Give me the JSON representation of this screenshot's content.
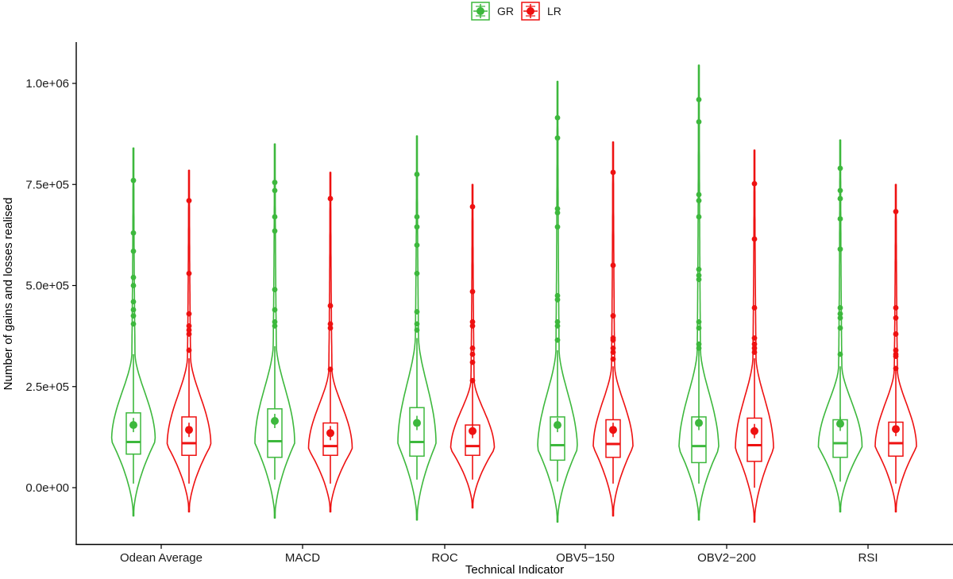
{
  "chart_data": {
    "type": "violin",
    "title": "",
    "xlabel": "Technical Indicator",
    "ylabel": "Number of gains and losses realised",
    "ylim": [
      -130000,
      1100000
    ],
    "yticks": [
      {
        "value": 0,
        "label": "0.0e+00"
      },
      {
        "value": 250000,
        "label": "2.5e+05"
      },
      {
        "value": 500000,
        "label": "5.0e+05"
      },
      {
        "value": 750000,
        "label": "7.5e+05"
      },
      {
        "value": 1000000,
        "label": "1.0e+06"
      }
    ],
    "grid": false,
    "legend": {
      "position": "top",
      "entries": [
        {
          "name": "GR",
          "color": "#3db83d"
        },
        {
          "name": "LR",
          "color": "#ee1111"
        }
      ]
    },
    "categories": [
      "Odean Average",
      "MACD",
      "ROC",
      "OBV5−150",
      "OBV2−200",
      "RSI"
    ],
    "series": [
      {
        "name": "GR",
        "color": "#3db83d",
        "groups": [
          {
            "min": -70000,
            "max": 840000,
            "q1": 83000,
            "median": 113000,
            "q3": 185000,
            "mean": 155000,
            "whisker_low": 10000,
            "whisker_high": 330000,
            "peak": 115000,
            "halfwidth": 55,
            "outliers": [
              760000,
              630000,
              585000,
              520000,
              500000,
              460000,
              440000,
              425000,
              405000
            ]
          },
          {
            "min": -75000,
            "max": 850000,
            "q1": 75000,
            "median": 115000,
            "q3": 195000,
            "mean": 165000,
            "whisker_low": 20000,
            "whisker_high": 350000,
            "peak": 110000,
            "halfwidth": 50,
            "outliers": [
              755000,
              735000,
              670000,
              635000,
              490000,
              440000,
              410000,
              400000
            ]
          },
          {
            "min": -80000,
            "max": 870000,
            "q1": 78000,
            "median": 113000,
            "q3": 198000,
            "mean": 160000,
            "whisker_low": 20000,
            "whisker_high": 370000,
            "peak": 108000,
            "halfwidth": 48,
            "outliers": [
              775000,
              670000,
              645000,
              600000,
              530000,
              435000,
              405000,
              390000
            ]
          },
          {
            "min": -85000,
            "max": 1005000,
            "q1": 68000,
            "median": 105000,
            "q3": 175000,
            "mean": 155000,
            "whisker_low": 15000,
            "whisker_high": 340000,
            "peak": 95000,
            "halfwidth": 50,
            "outliers": [
              915000,
              865000,
              690000,
              680000,
              645000,
              475000,
              465000,
              410000,
              400000,
              365000
            ]
          },
          {
            "min": -80000,
            "max": 1045000,
            "q1": 62000,
            "median": 103000,
            "q3": 175000,
            "mean": 160000,
            "whisker_low": 10000,
            "whisker_high": 340000,
            "peak": 95000,
            "halfwidth": 50,
            "outliers": [
              960000,
              905000,
              725000,
              710000,
              670000,
              540000,
              525000,
              515000,
              410000,
              395000,
              355000,
              345000
            ]
          },
          {
            "min": -60000,
            "max": 860000,
            "q1": 75000,
            "median": 110000,
            "q3": 168000,
            "mean": 158000,
            "whisker_low": 15000,
            "whisker_high": 300000,
            "peak": 100000,
            "halfwidth": 55,
            "outliers": [
              790000,
              735000,
              715000,
              665000,
              590000,
              445000,
              430000,
              420000,
              395000,
              330000
            ]
          }
        ]
      },
      {
        "name": "LR",
        "color": "#ee1111",
        "groups": [
          {
            "min": -60000,
            "max": 785000,
            "q1": 80000,
            "median": 110000,
            "q3": 175000,
            "mean": 143000,
            "whisker_low": 10000,
            "whisker_high": 320000,
            "peak": 105000,
            "halfwidth": 55,
            "outliers": [
              710000,
              530000,
              430000,
              400000,
              390000,
              380000,
              340000
            ]
          },
          {
            "min": -60000,
            "max": 780000,
            "q1": 80000,
            "median": 103000,
            "q3": 160000,
            "mean": 135000,
            "whisker_low": 10000,
            "whisker_high": 290000,
            "peak": 95000,
            "halfwidth": 55,
            "outliers": [
              715000,
              450000,
              405000,
              395000,
              293000
            ]
          },
          {
            "min": -50000,
            "max": 750000,
            "q1": 80000,
            "median": 103000,
            "q3": 155000,
            "mean": 140000,
            "whisker_low": 20000,
            "whisker_high": 265000,
            "peak": 95000,
            "halfwidth": 55,
            "outliers": [
              695000,
              485000,
              410000,
              400000,
              345000,
              330000,
              310000,
              265000
            ]
          },
          {
            "min": -70000,
            "max": 855000,
            "q1": 75000,
            "median": 108000,
            "q3": 168000,
            "mean": 143000,
            "whisker_low": 10000,
            "whisker_high": 300000,
            "peak": 100000,
            "halfwidth": 50,
            "outliers": [
              780000,
              550000,
              425000,
              370000,
              365000,
              345000,
              335000,
              318000
            ]
          },
          {
            "min": -85000,
            "max": 835000,
            "q1": 65000,
            "median": 105000,
            "q3": 172000,
            "mean": 140000,
            "whisker_low": 0,
            "whisker_high": 320000,
            "peak": 95000,
            "halfwidth": 48,
            "outliers": [
              752000,
              615000,
              445000,
              370000,
              355000,
              345000,
              335000
            ]
          },
          {
            "min": -60000,
            "max": 750000,
            "q1": 78000,
            "median": 110000,
            "q3": 162000,
            "mean": 145000,
            "whisker_low": 10000,
            "whisker_high": 290000,
            "peak": 100000,
            "halfwidth": 52,
            "outliers": [
              683000,
              445000,
              420000,
              380000,
              340000,
              330000,
              325000,
              295000
            ]
          }
        ]
      }
    ]
  },
  "colors": {
    "GR": "#3db83d",
    "LR": "#ee1111",
    "axis": "#000000",
    "text": "#1a1a1a"
  }
}
